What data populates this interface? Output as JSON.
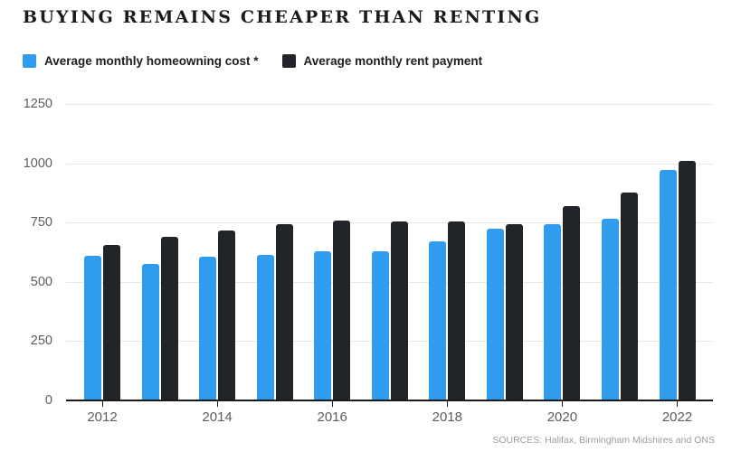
{
  "header": {
    "title": "BUYING REMAINS CHEAPER THAN RENTING"
  },
  "legend": [
    {
      "label": "Average monthly homeowning cost *",
      "color": "#2f9cf0"
    },
    {
      "label": "Average monthly rent payment",
      "color": "#212428"
    }
  ],
  "source": "SOURCES: Halifax, Birmingham Midshires and ONS",
  "colors": {
    "homeowning": "#2f9cf0",
    "rent": "#212428",
    "grid": "#e9e9e9",
    "axis": "#1a1a1a",
    "axis_text": "#5c5c5c",
    "source_text": "#9c9c9c"
  },
  "chart_data": {
    "type": "bar",
    "title": "BUYING REMAINS CHEAPER THAN RENTING",
    "categories": [
      2012,
      2013,
      2014,
      2015,
      2016,
      2017,
      2018,
      2019,
      2020,
      2021,
      2022
    ],
    "series": [
      {
        "name": "Average monthly homeowning cost *",
        "color": "#2f9cf0",
        "values": [
          610,
          575,
          605,
          615,
          630,
          630,
          670,
          725,
          745,
          765,
          970
        ]
      },
      {
        "name": "Average monthly rent payment",
        "color": "#212428",
        "values": [
          655,
          690,
          715,
          745,
          760,
          755,
          755,
          745,
          820,
          875,
          1010
        ]
      }
    ],
    "xlabel": "",
    "ylabel": "",
    "ylim": [
      0,
      1250
    ],
    "yticks": [
      0,
      250,
      500,
      750,
      1000,
      1250
    ],
    "xtick_labels": [
      "2012",
      "2014",
      "2016",
      "2018",
      "2020",
      "2022"
    ],
    "grid": true,
    "legend_position": "top-left"
  }
}
